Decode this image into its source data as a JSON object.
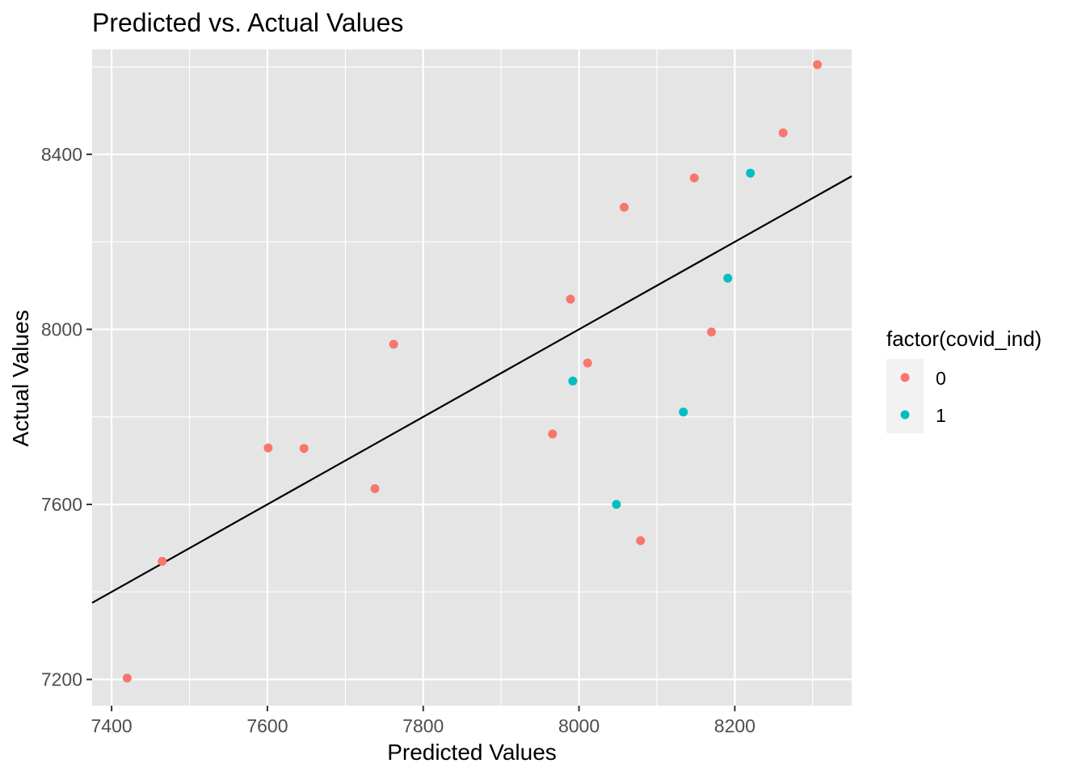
{
  "chart_data": {
    "type": "scatter",
    "title": "Predicted vs. Actual Values",
    "xlabel": "Predicted Values",
    "ylabel": "Actual Values",
    "xlim": [
      7375,
      8350
    ],
    "ylim": [
      7140,
      8640
    ],
    "x_ticks": [
      7400,
      7600,
      7800,
      8000,
      8200
    ],
    "x_minor_ticks": [
      7500,
      7700,
      7900,
      8100,
      8300
    ],
    "y_ticks": [
      7200,
      7600,
      8000,
      8400
    ],
    "y_minor_ticks": [
      7400,
      7800,
      8200,
      8600
    ],
    "x_tick_labels": [
      "7400",
      "7600",
      "7800",
      "8000",
      "8200"
    ],
    "y_tick_labels": [
      "7200",
      "7600",
      "8000",
      "8400"
    ],
    "grid": true,
    "panel_background": "#e5e5e5",
    "grid_color": "#ffffff",
    "legend": {
      "title": "factor(covid_ind)",
      "position": "right",
      "entries": [
        {
          "label": "0",
          "color": "#f8766d"
        },
        {
          "label": "1",
          "color": "#00bfc4"
        }
      ]
    },
    "reference_line": {
      "type": "identity",
      "slope": 1,
      "intercept": 0,
      "color": "#000000"
    },
    "series": [
      {
        "name": "0",
        "color": "#f8766d",
        "points": [
          {
            "x": 7420,
            "y": 7203
          },
          {
            "x": 7465,
            "y": 7470
          },
          {
            "x": 7601,
            "y": 7729
          },
          {
            "x": 7647,
            "y": 7728
          },
          {
            "x": 7738,
            "y": 7636
          },
          {
            "x": 7762,
            "y": 7966
          },
          {
            "x": 7966,
            "y": 7761
          },
          {
            "x": 7989,
            "y": 8069
          },
          {
            "x": 8011,
            "y": 7923
          },
          {
            "x": 8058,
            "y": 8279
          },
          {
            "x": 8079,
            "y": 7517
          },
          {
            "x": 8148,
            "y": 8346
          },
          {
            "x": 8170,
            "y": 7994
          },
          {
            "x": 8262,
            "y": 8449
          },
          {
            "x": 8306,
            "y": 8605
          }
        ]
      },
      {
        "name": "1",
        "color": "#00bfc4",
        "points": [
          {
            "x": 7992,
            "y": 7882
          },
          {
            "x": 8048,
            "y": 7600
          },
          {
            "x": 8134,
            "y": 7811
          },
          {
            "x": 8191,
            "y": 8117
          },
          {
            "x": 8220,
            "y": 8357
          }
        ]
      }
    ]
  }
}
